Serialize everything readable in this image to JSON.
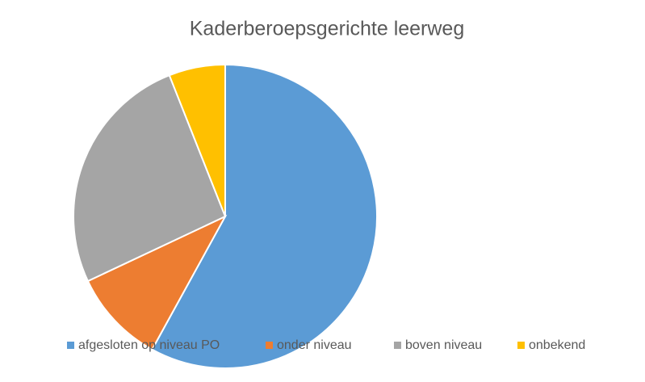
{
  "chart_data": {
    "type": "pie",
    "title": "Kaderberoepsgerichte leerweg",
    "categories": [
      "afgesloten op niveau PO",
      "onder niveau",
      "boven niveau",
      "onbekend"
    ],
    "values": [
      58,
      10,
      26,
      6
    ],
    "colors": [
      "#5b9bd5",
      "#ed7d31",
      "#a5a5a5",
      "#ffc000"
    ],
    "legend": "bottom"
  }
}
